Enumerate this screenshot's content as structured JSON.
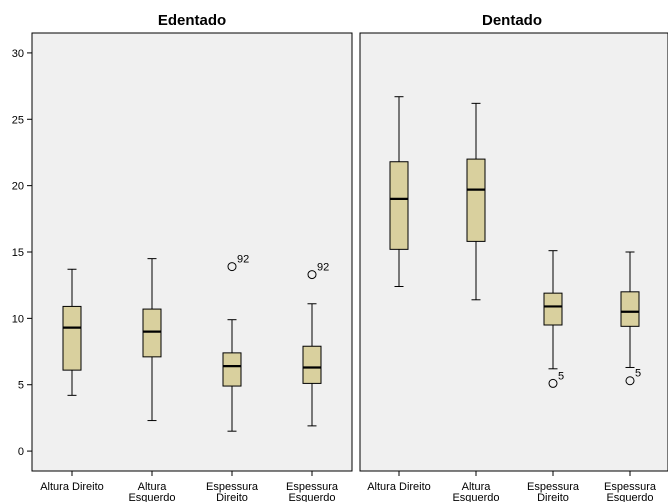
{
  "chart_data": {
    "type": "boxplot",
    "ylim": [
      -1.5,
      31.5
    ],
    "yticks": [
      "0",
      "5",
      "10",
      "15",
      "20",
      "25",
      "30"
    ],
    "colors": {
      "box_fill": "#d9d09e",
      "panel_bg": "#f0f0f0",
      "line": "#000000"
    },
    "grid": false,
    "panels": [
      {
        "title": "Edentado",
        "categories": [
          [
            "Altura Direito"
          ],
          [
            "Altura",
            "Esquerdo"
          ],
          [
            "Espessura",
            "Direito"
          ],
          [
            "Espessura",
            "Esquerdo"
          ]
        ],
        "boxes": [
          {
            "min": 4.2,
            "q1": 6.1,
            "median": 9.3,
            "q3": 10.9,
            "max": 13.7,
            "outliers": []
          },
          {
            "min": 2.3,
            "q1": 7.1,
            "median": 9.0,
            "q3": 10.7,
            "max": 14.5,
            "outliers": []
          },
          {
            "min": 1.5,
            "q1": 4.9,
            "median": 6.4,
            "q3": 7.4,
            "max": 9.9,
            "outliers": [
              {
                "value": 13.9,
                "label": "92"
              }
            ]
          },
          {
            "min": 1.9,
            "q1": 5.1,
            "median": 6.3,
            "q3": 7.9,
            "max": 11.1,
            "outliers": [
              {
                "value": 13.3,
                "label": "92"
              }
            ]
          }
        ]
      },
      {
        "title": "Dentado",
        "categories": [
          [
            "Altura Direito"
          ],
          [
            "Altura",
            "Esquerdo"
          ],
          [
            "Espessura",
            "Direito"
          ],
          [
            "Espessura",
            "Esquerdo"
          ]
        ],
        "boxes": [
          {
            "min": 12.4,
            "q1": 15.2,
            "median": 19.0,
            "q3": 21.8,
            "max": 26.7,
            "outliers": []
          },
          {
            "min": 11.4,
            "q1": 15.8,
            "median": 19.7,
            "q3": 22.0,
            "max": 26.2,
            "outliers": []
          },
          {
            "min": 6.2,
            "q1": 9.5,
            "median": 10.9,
            "q3": 11.9,
            "max": 15.1,
            "outliers": [
              {
                "value": 5.1,
                "label": "5"
              }
            ]
          },
          {
            "min": 6.3,
            "q1": 9.4,
            "median": 10.5,
            "q3": 12.0,
            "max": 15.0,
            "outliers": [
              {
                "value": 5.3,
                "label": "5"
              }
            ]
          }
        ]
      }
    ]
  }
}
